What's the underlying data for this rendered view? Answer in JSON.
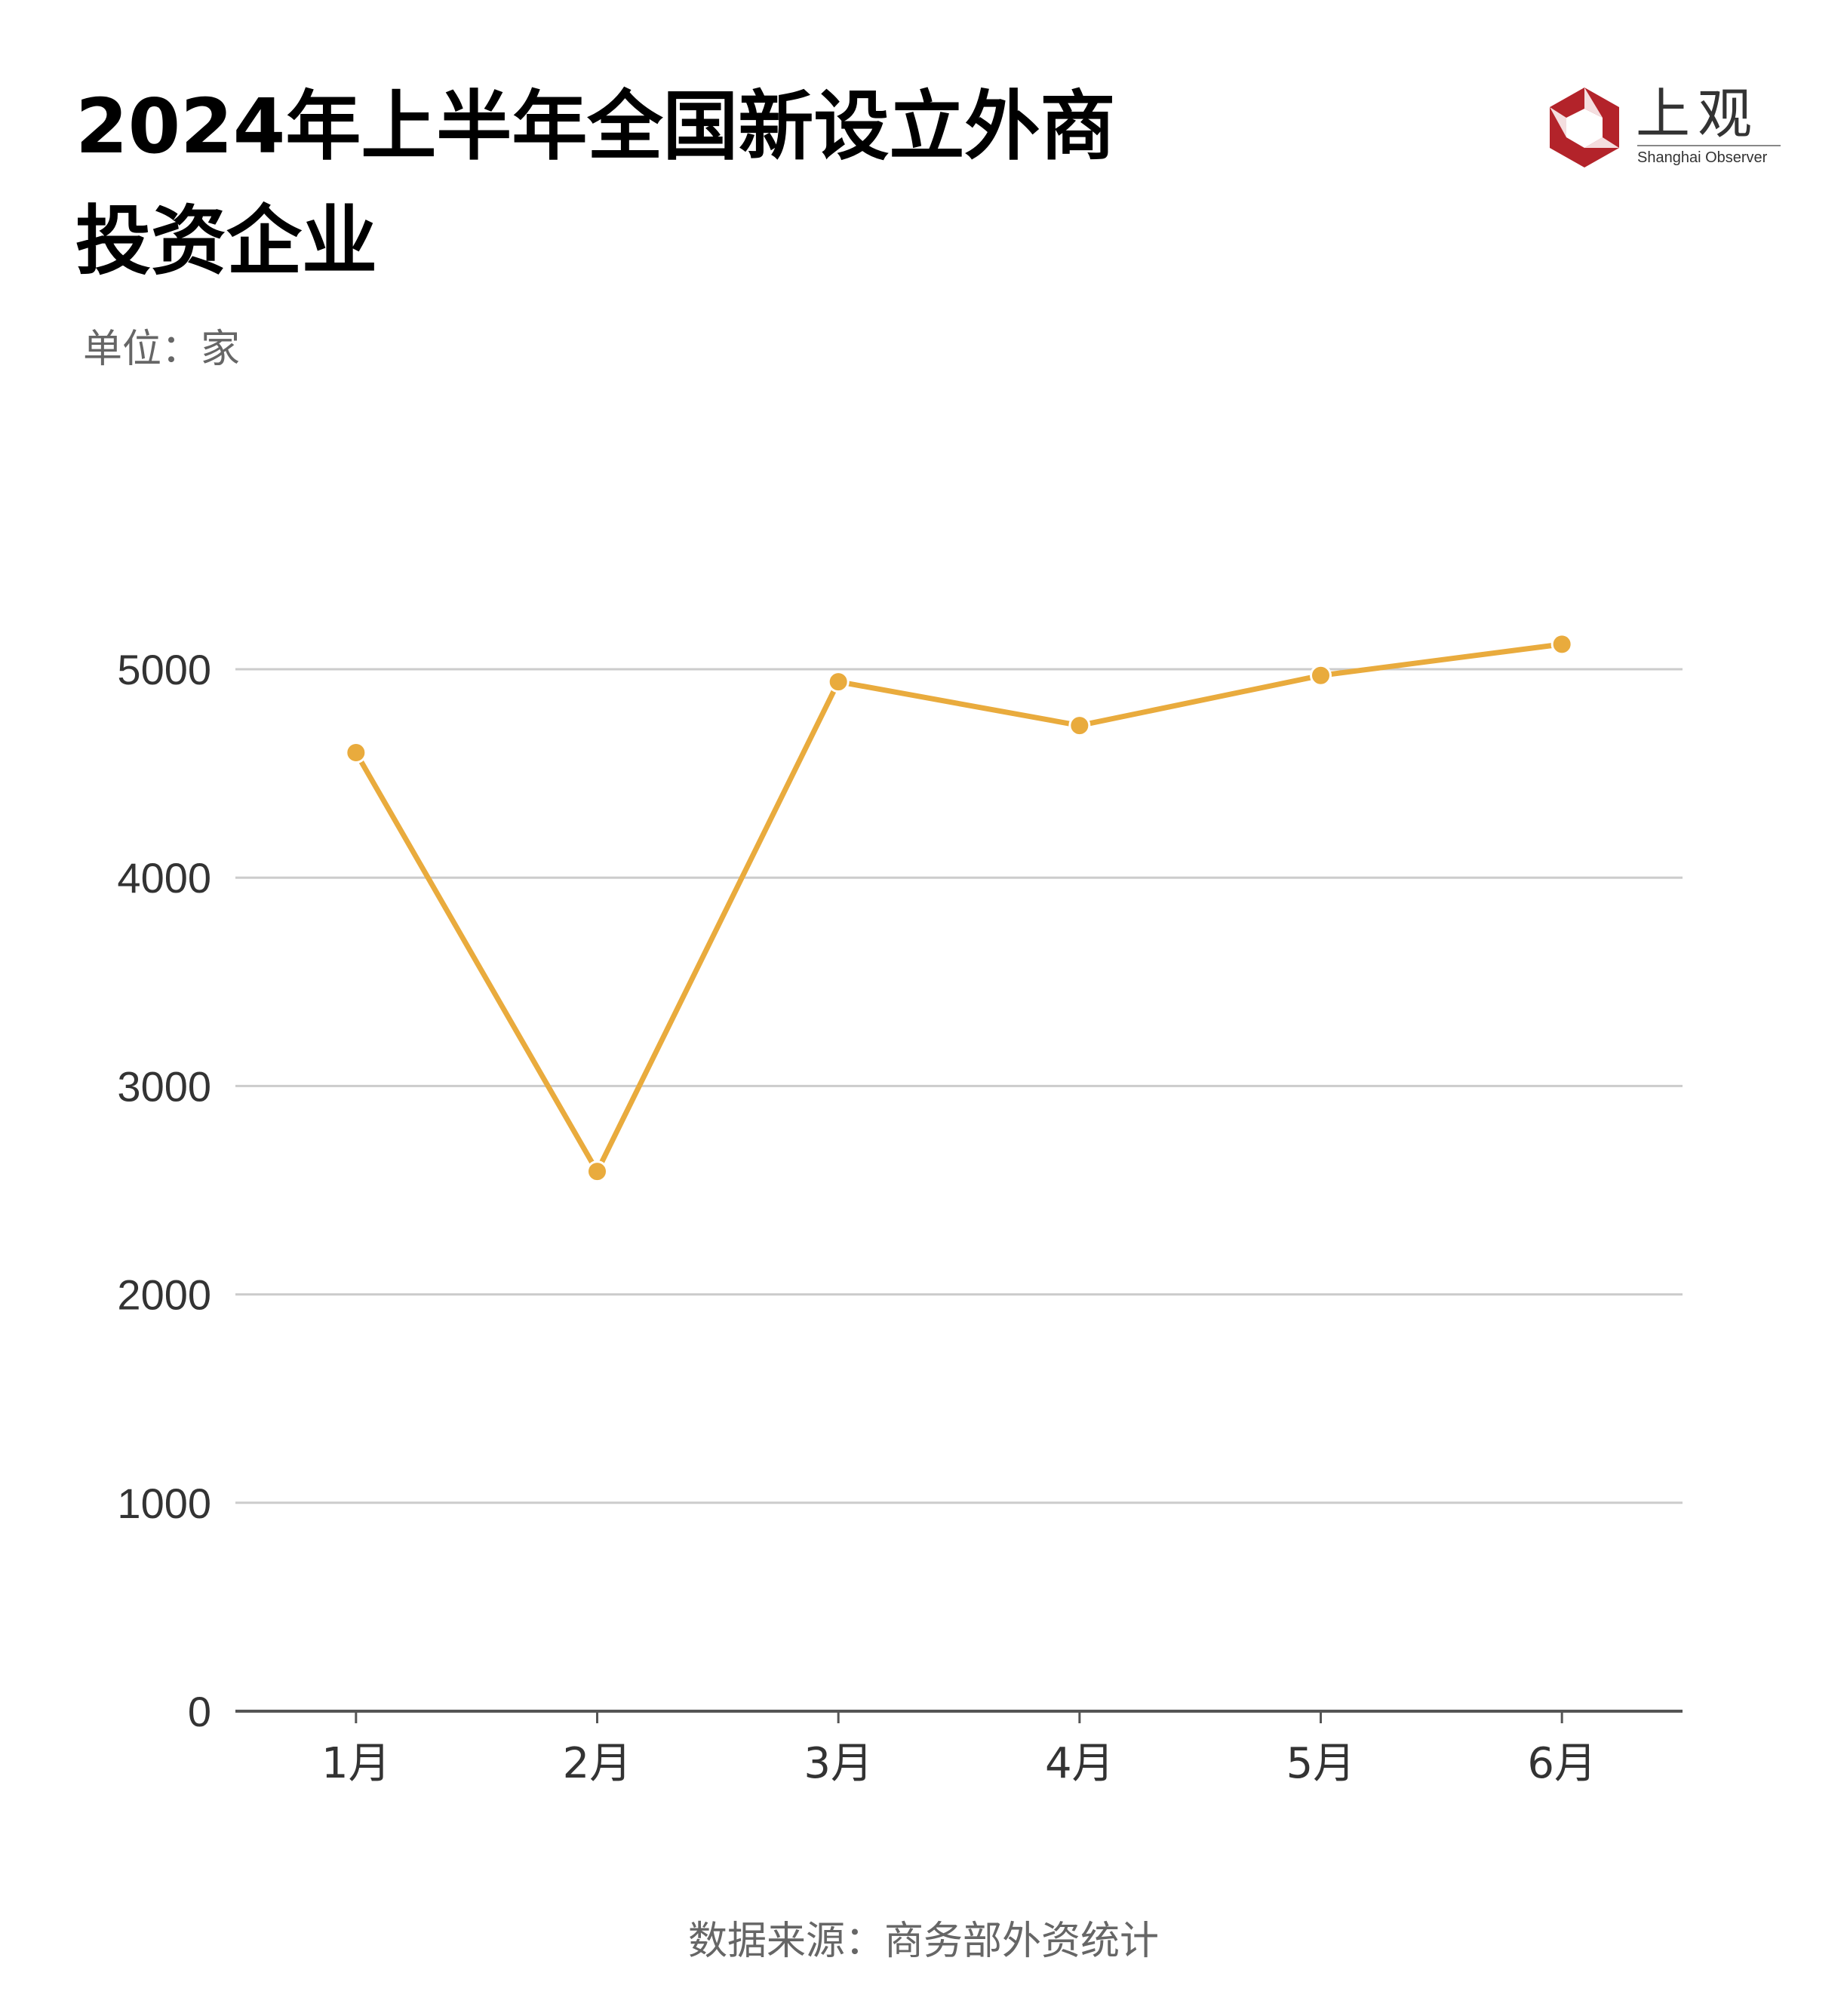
{
  "header": {
    "title_line1": "2024年上半年全国新设立外商",
    "title_line2": "投资企业",
    "unit": "单位：家"
  },
  "logo": {
    "cn": "上观",
    "en": "Shanghai Observer"
  },
  "footer": {
    "source": "数据来源：商务部外资统计"
  },
  "colors": {
    "line": "#e9ab3d",
    "grid": "#cccccc",
    "axis": "#555555",
    "logo_red": "#b3232a"
  },
  "chart_data": {
    "type": "line",
    "categories": [
      "1月",
      "2月",
      "3月",
      "4月",
      "5月",
      "6月"
    ],
    "series": [
      {
        "values": [
          4600,
          2590,
          4940,
          4730,
          4970,
          5120
        ]
      }
    ],
    "yticks": [
      "0",
      "1000",
      "2000",
      "3000",
      "4000",
      "5000"
    ],
    "ylim": [
      0,
      5000
    ],
    "title": "2024年上半年全国新设立外商投资企业",
    "ylabel": "单位：家",
    "grid": true,
    "legend": "none"
  }
}
